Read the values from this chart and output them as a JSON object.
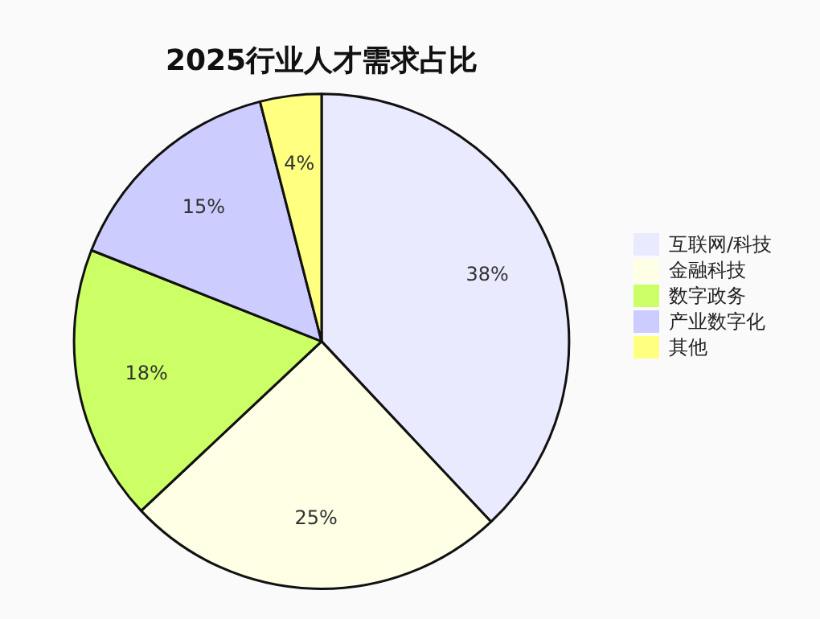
{
  "chart_data": {
    "type": "pie",
    "title": "2025行业人才需求占比",
    "categories": [
      "互联网/科技",
      "金融科技",
      "数字政务",
      "产业数字化",
      "其他"
    ],
    "values": [
      38,
      25,
      18,
      15,
      4
    ],
    "colors": [
      "#eaeaff",
      "#ffffe6",
      "#ccff66",
      "#ccccff",
      "#ffff80"
    ],
    "value_labels": [
      "38%",
      "25%",
      "18%",
      "15%",
      "4%"
    ],
    "legend": "right"
  }
}
